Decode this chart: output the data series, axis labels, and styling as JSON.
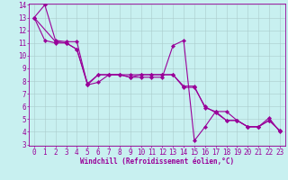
{
  "xlabel": "Windchill (Refroidissement éolien,°C)",
  "bg_color": "#c8f0f0",
  "line_color": "#990099",
  "grid_color": "#aacccc",
  "series1_x": [
    0,
    1,
    2,
    3,
    4,
    5,
    6,
    7,
    8,
    9,
    10,
    11,
    12,
    13,
    14,
    15,
    16,
    17,
    18,
    19,
    20,
    21,
    22,
    23
  ],
  "series1_y": [
    13.0,
    14.0,
    11.2,
    11.1,
    11.1,
    7.7,
    7.9,
    8.5,
    8.5,
    8.3,
    8.3,
    8.3,
    8.3,
    10.8,
    11.2,
    3.3,
    4.4,
    5.6,
    5.6,
    4.9,
    4.4,
    4.4,
    5.1,
    4.0
  ],
  "series2_x": [
    0,
    1,
    2,
    3,
    4,
    5,
    6,
    7,
    8,
    9,
    10,
    11,
    12,
    13,
    14,
    15,
    16,
    17,
    18,
    19,
    20,
    21,
    22,
    23
  ],
  "series2_y": [
    13.0,
    11.2,
    11.0,
    11.0,
    10.5,
    7.8,
    8.5,
    8.5,
    8.5,
    8.3,
    8.5,
    8.5,
    8.5,
    8.5,
    7.6,
    7.6,
    5.9,
    5.6,
    4.9,
    4.9,
    4.4,
    4.4,
    4.9,
    4.1
  ],
  "series3_x": [
    0,
    2,
    3,
    4,
    5,
    6,
    7,
    8,
    9,
    10,
    11,
    12,
    13,
    14,
    15,
    16,
    17,
    18,
    19,
    20,
    21,
    22,
    23
  ],
  "series3_y": [
    13.0,
    11.1,
    11.0,
    10.5,
    7.7,
    8.5,
    8.5,
    8.5,
    8.5,
    8.5,
    8.5,
    8.5,
    8.5,
    7.5,
    7.5,
    6.0,
    5.5,
    4.9,
    4.9,
    4.4,
    4.4,
    4.9,
    4.1
  ],
  "ylim": [
    3,
    14
  ],
  "xlim": [
    -0.5,
    23.5
  ],
  "yticks": [
    3,
    4,
    5,
    6,
    7,
    8,
    9,
    10,
    11,
    12,
    13,
    14
  ],
  "xticks": [
    0,
    1,
    2,
    3,
    4,
    5,
    6,
    7,
    8,
    9,
    10,
    11,
    12,
    13,
    14,
    15,
    16,
    17,
    18,
    19,
    20,
    21,
    22,
    23
  ],
  "tick_fontsize": 5.5,
  "xlabel_fontsize": 5.5,
  "marker_size": 2.2,
  "line_width": 0.8
}
